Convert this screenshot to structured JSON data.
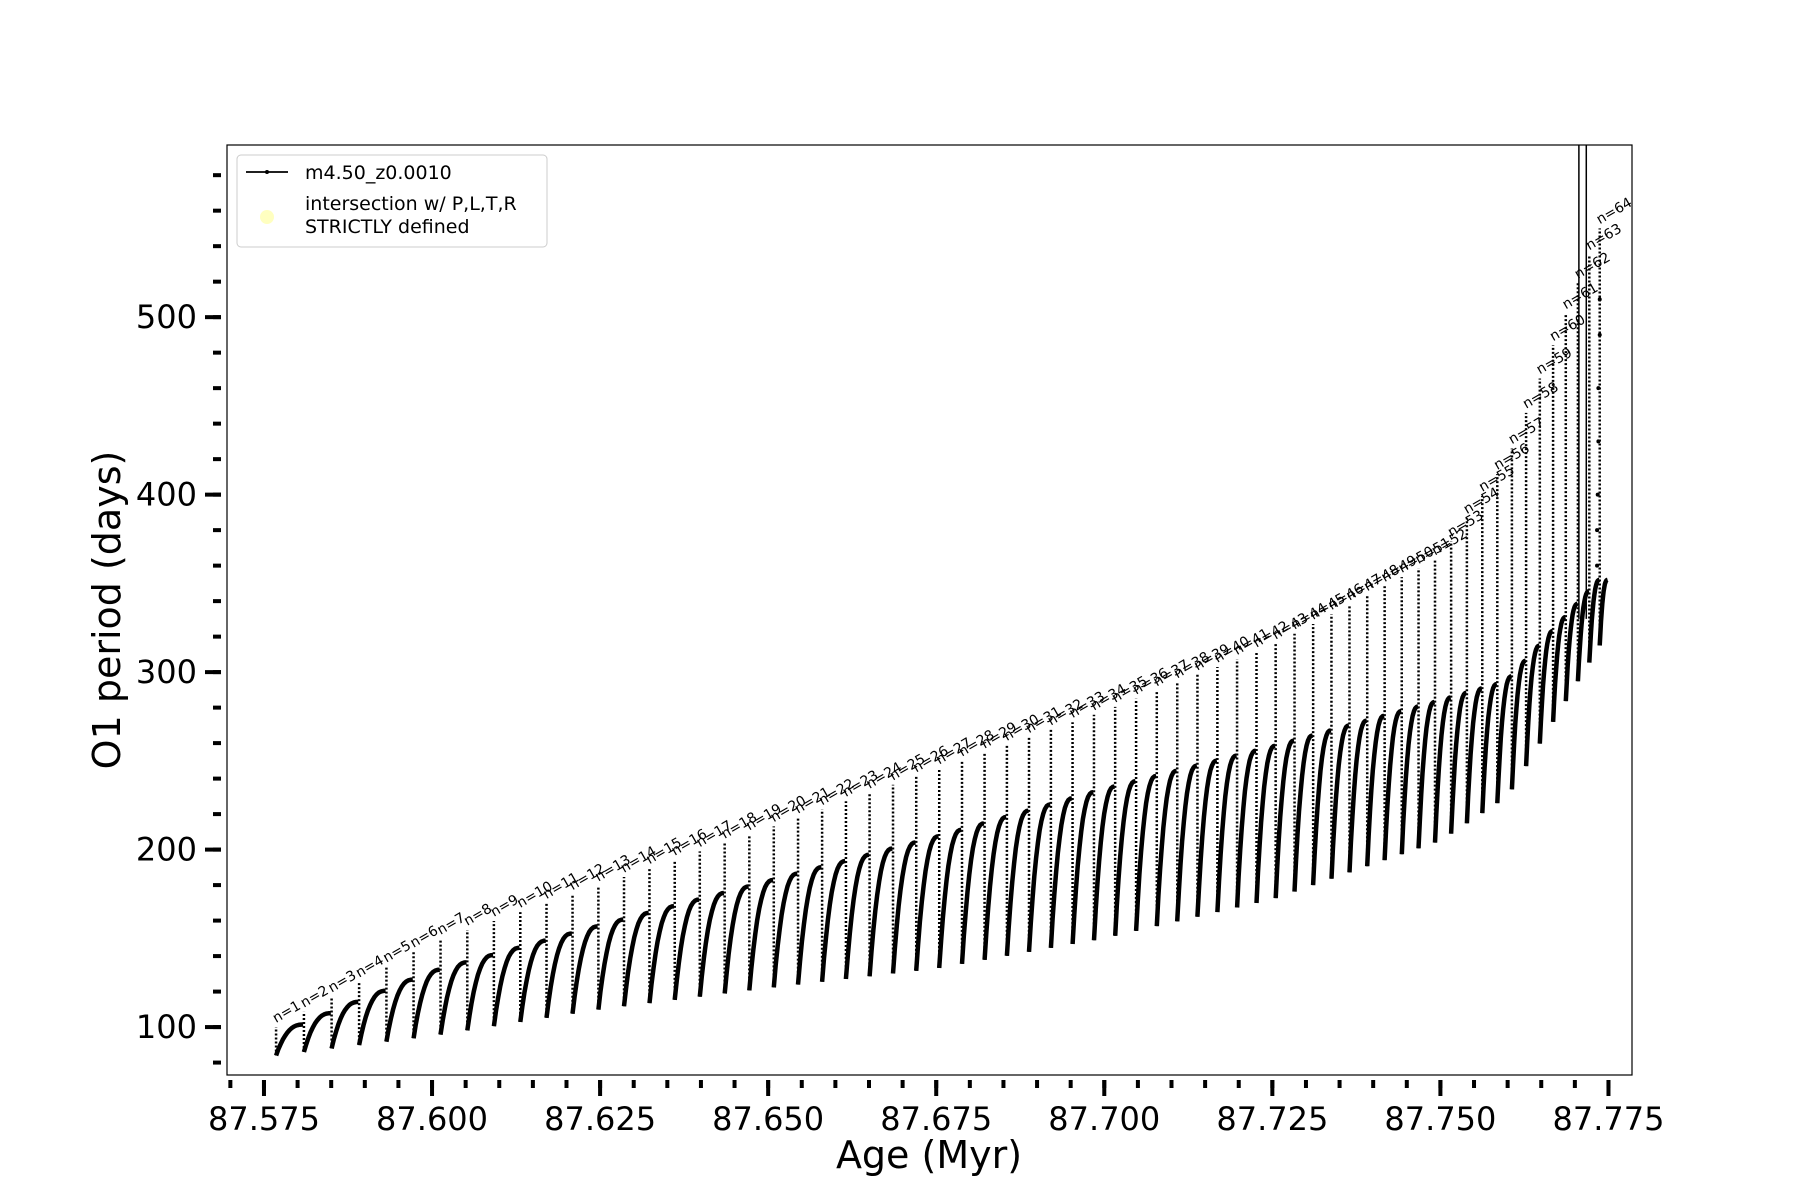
{
  "chart_data": {
    "type": "line",
    "xlabel": "Age (Myr)",
    "ylabel": "O1 period (days)",
    "xlim": [
      87.5695,
      87.7785
    ],
    "ylim": [
      73,
      597
    ],
    "x_ticks": [
      87.575,
      87.6,
      87.625,
      87.65,
      87.675,
      87.7,
      87.725,
      87.75,
      87.775
    ],
    "x_tick_labels": [
      "87.575",
      "87.600",
      "87.625",
      "87.650",
      "87.675",
      "87.700",
      "87.725",
      "87.750",
      "87.775"
    ],
    "x_minor_step": 0.005,
    "y_ticks": [
      100,
      200,
      300,
      400,
      500
    ],
    "y_tick_labels": [
      "100",
      "200",
      "300",
      "400",
      "500"
    ],
    "y_minor_step": 20,
    "series": [
      {
        "name": "m4.50_z0.0010",
        "color": "#000000",
        "marker": "dot",
        "pulse_start_age": 87.5768,
        "pulse_end_age": 87.7737,
        "pulse_count": 64,
        "envelope_lower": [
          [
            87.5768,
            84
          ],
          [
            87.6,
            95
          ],
          [
            87.625,
            110
          ],
          [
            87.65,
            122
          ],
          [
            87.675,
            133
          ],
          [
            87.7,
            150
          ],
          [
            87.725,
            172
          ],
          [
            87.75,
            205
          ],
          [
            87.76,
            230
          ],
          [
            87.7737,
            315
          ]
        ],
        "envelope_upper": [
          [
            87.5768,
            95
          ],
          [
            87.6,
            131
          ],
          [
            87.625,
            157
          ],
          [
            87.65,
            182
          ],
          [
            87.675,
            207
          ],
          [
            87.7,
            234
          ],
          [
            87.725,
            258
          ],
          [
            87.75,
            284
          ],
          [
            87.76,
            295
          ],
          [
            87.7737,
            352
          ]
        ],
        "spike_peak": [
          [
            87.5768,
            100
          ],
          [
            87.6,
            148
          ],
          [
            87.625,
            180
          ],
          [
            87.65,
            212
          ],
          [
            87.675,
            245
          ],
          [
            87.7,
            278
          ],
          [
            87.725,
            315
          ],
          [
            87.75,
            365
          ],
          [
            87.76,
            420
          ],
          [
            87.7737,
            550
          ]
        ]
      }
    ],
    "legend": {
      "position": "upper-left",
      "entries": [
        {
          "label": "m4.50_z0.0010",
          "marker": "line"
        },
        {
          "label": "intersection w/ P,L,T,R\nSTRICTLY defined",
          "marker": "circle",
          "color": "#ffffc0"
        }
      ]
    },
    "pulse_labels": [
      "n=1",
      "n=2",
      "n=3",
      "n=4",
      "n=5",
      "n=6",
      "n=7",
      "n=8",
      "n=9",
      "n=10",
      "n=11",
      "n=12",
      "n=13",
      "n=14",
      "n=15",
      "n=16",
      "n=17",
      "n=18",
      "n=19",
      "n=20",
      "n=21",
      "n=22",
      "n=23",
      "n=24",
      "n=25",
      "n=26",
      "n=27",
      "n=28",
      "n=29",
      "n=30",
      "n=31",
      "n=32",
      "n=33",
      "n=34",
      "n=35",
      "n=36",
      "n=37",
      "n=38",
      "n=39",
      "n=40",
      "n=41",
      "n=42",
      "n=43",
      "n=44",
      "n=45",
      "n=46",
      "n=47",
      "n=48",
      "n=49",
      "n=50",
      "n=51",
      "n=52",
      "n=53",
      "n=54",
      "n=55",
      "n=56",
      "n=57",
      "n=58",
      "n=59",
      "n=60",
      "n=61",
      "n=62",
      "n=63",
      "n=64"
    ],
    "grid": false
  }
}
